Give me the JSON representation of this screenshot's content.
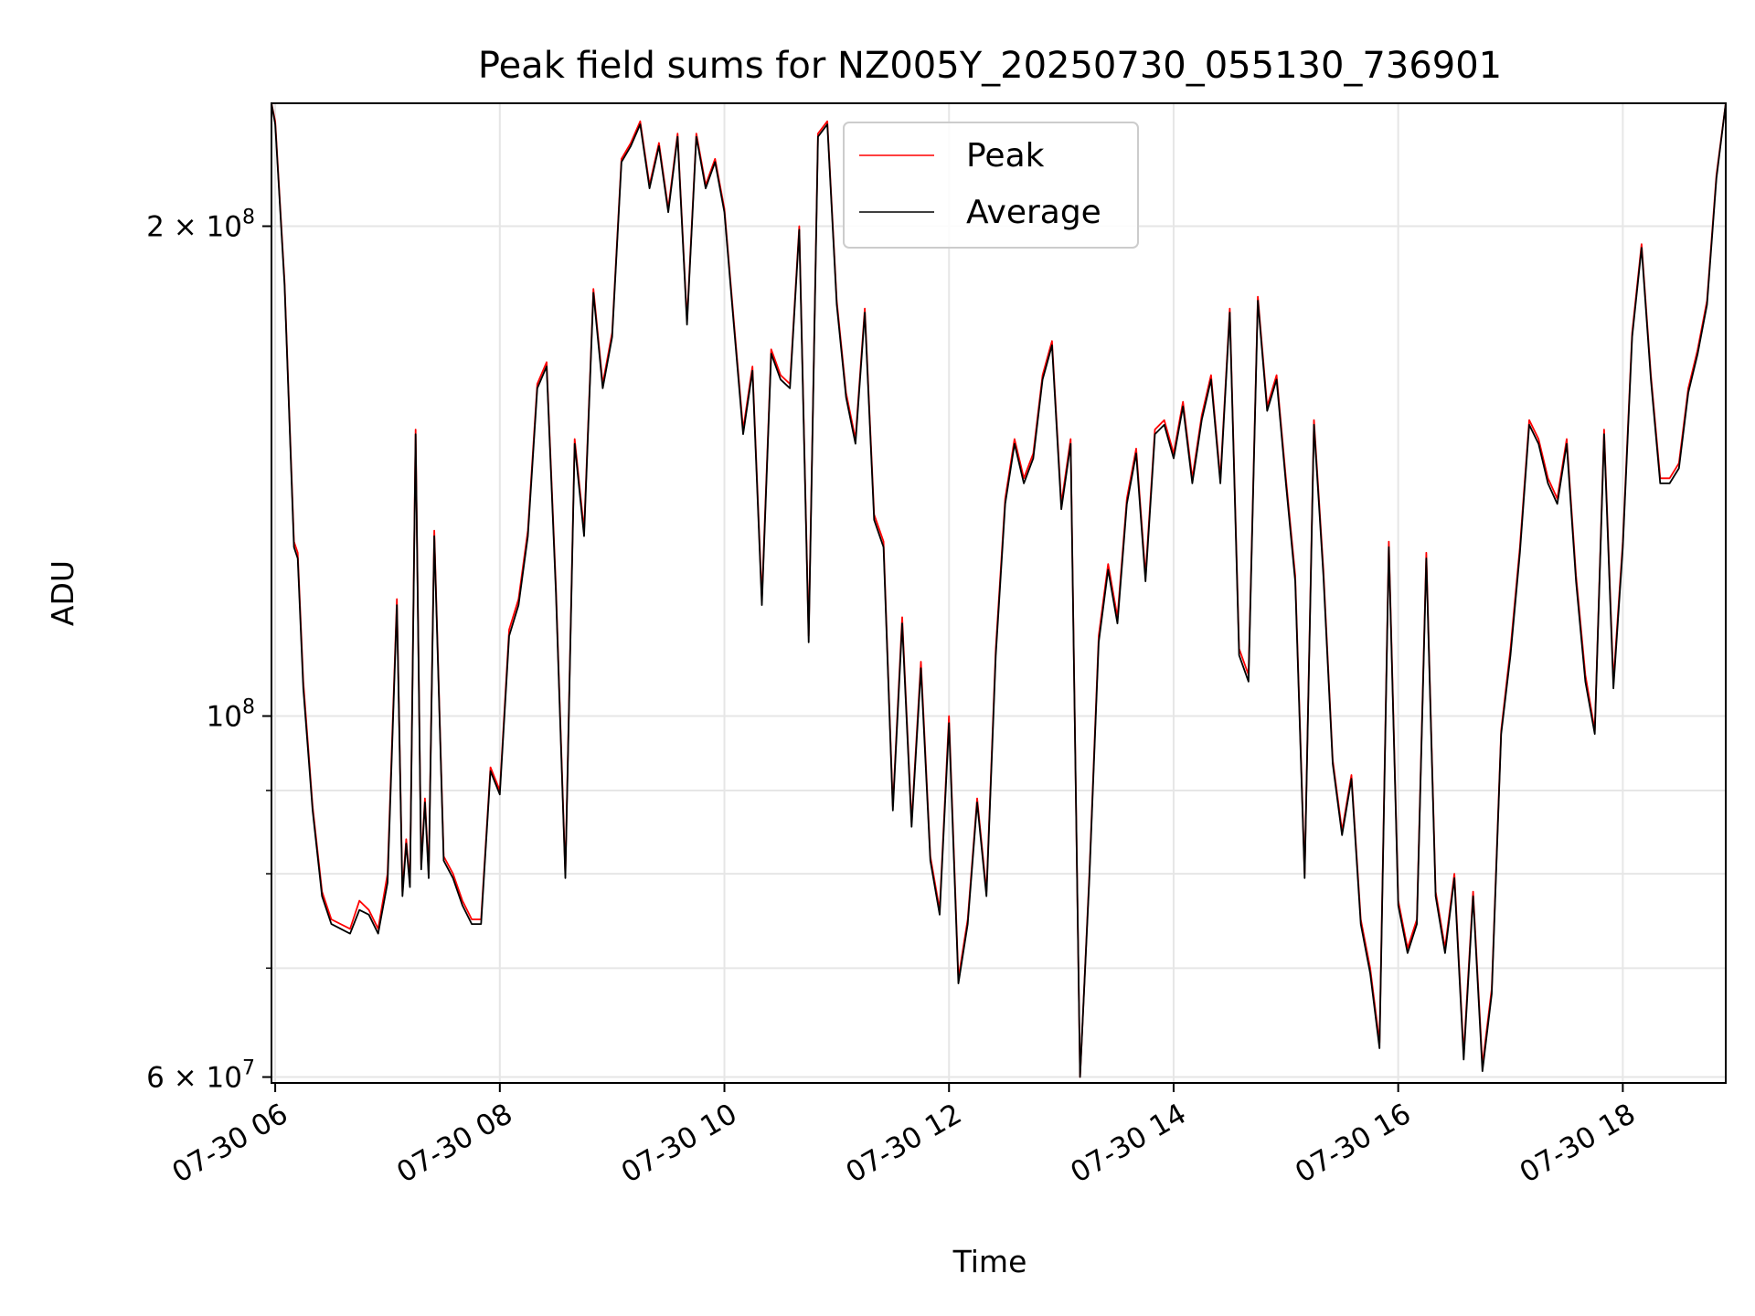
{
  "chart_data": {
    "type": "line",
    "title": "Peak field sums for NZ005Y_20250730_055130_736901",
    "xlabel": "Time",
    "ylabel": "ADU",
    "yscale": "log",
    "ylim": [
      59500000,
      238000000
    ],
    "xlim": [
      "2025-07-30 05:58",
      "2025-07-30 18:55"
    ],
    "grid": true,
    "legend_position": "top-center",
    "x_ticks": [
      {
        "x": "2025-07-30 06:00",
        "label": "07-30 06"
      },
      {
        "x": "2025-07-30 08:00",
        "label": "07-30 08"
      },
      {
        "x": "2025-07-30 10:00",
        "label": "07-30 10"
      },
      {
        "x": "2025-07-30 12:00",
        "label": "07-30 12"
      },
      {
        "x": "2025-07-30 14:00",
        "label": "07-30 14"
      },
      {
        "x": "2025-07-30 16:00",
        "label": "07-30 16"
      },
      {
        "x": "2025-07-30 18:00",
        "label": "07-30 18"
      }
    ],
    "y_ticks": [
      {
        "y": 60000000,
        "base": "6 × 10",
        "exp": "7"
      },
      {
        "y": 100000000,
        "base": "10",
        "exp": "8"
      },
      {
        "y": 200000000,
        "base": "2 × 10",
        "exp": "8"
      }
    ],
    "y_minor_ticks": [
      70000000,
      80000000,
      90000000
    ],
    "series": [
      {
        "name": "Peak",
        "color": "#ff0000",
        "x": [
          "2025-07-30 05:58",
          "2025-07-30 06:00",
          "2025-07-30 06:05",
          "2025-07-30 06:10",
          "2025-07-30 06:12",
          "2025-07-30 06:15",
          "2025-07-30 06:20",
          "2025-07-30 06:25",
          "2025-07-30 06:30",
          "2025-07-30 06:40",
          "2025-07-30 06:45",
          "2025-07-30 06:50",
          "2025-07-30 06:55",
          "2025-07-30 07:00",
          "2025-07-30 07:05",
          "2025-07-30 07:08",
          "2025-07-30 07:10",
          "2025-07-30 07:12",
          "2025-07-30 07:15",
          "2025-07-30 07:18",
          "2025-07-30 07:20",
          "2025-07-30 07:22",
          "2025-07-30 07:25",
          "2025-07-30 07:30",
          "2025-07-30 07:35",
          "2025-07-30 07:40",
          "2025-07-30 07:45",
          "2025-07-30 07:50",
          "2025-07-30 07:55",
          "2025-07-30 08:00",
          "2025-07-30 08:05",
          "2025-07-30 08:10",
          "2025-07-30 08:15",
          "2025-07-30 08:20",
          "2025-07-30 08:25",
          "2025-07-30 08:30",
          "2025-07-30 08:35",
          "2025-07-30 08:40",
          "2025-07-30 08:45",
          "2025-07-30 08:50",
          "2025-07-30 08:55",
          "2025-07-30 09:00",
          "2025-07-30 09:05",
          "2025-07-30 09:10",
          "2025-07-30 09:15",
          "2025-07-30 09:20",
          "2025-07-30 09:25",
          "2025-07-30 09:30",
          "2025-07-30 09:35",
          "2025-07-30 09:40",
          "2025-07-30 09:45",
          "2025-07-30 09:50",
          "2025-07-30 09:55",
          "2025-07-30 10:00",
          "2025-07-30 10:05",
          "2025-07-30 10:10",
          "2025-07-30 10:15",
          "2025-07-30 10:20",
          "2025-07-30 10:25",
          "2025-07-30 10:30",
          "2025-07-30 10:35",
          "2025-07-30 10:40",
          "2025-07-30 10:45",
          "2025-07-30 10:50",
          "2025-07-30 10:55",
          "2025-07-30 11:00",
          "2025-07-30 11:05",
          "2025-07-30 11:10",
          "2025-07-30 11:15",
          "2025-07-30 11:20",
          "2025-07-30 11:25",
          "2025-07-30 11:30",
          "2025-07-30 11:35",
          "2025-07-30 11:40",
          "2025-07-30 11:45",
          "2025-07-30 11:50",
          "2025-07-30 11:55",
          "2025-07-30 12:00",
          "2025-07-30 12:05",
          "2025-07-30 12:10",
          "2025-07-30 12:15",
          "2025-07-30 12:20",
          "2025-07-30 12:25",
          "2025-07-30 12:30",
          "2025-07-30 12:35",
          "2025-07-30 12:40",
          "2025-07-30 12:45",
          "2025-07-30 12:50",
          "2025-07-30 12:55",
          "2025-07-30 13:00",
          "2025-07-30 13:05",
          "2025-07-30 13:10",
          "2025-07-30 13:15",
          "2025-07-30 13:20",
          "2025-07-30 13:25",
          "2025-07-30 13:30",
          "2025-07-30 13:35",
          "2025-07-30 13:40",
          "2025-07-30 13:45",
          "2025-07-30 13:50",
          "2025-07-30 13:55",
          "2025-07-30 14:00",
          "2025-07-30 14:05",
          "2025-07-30 14:10",
          "2025-07-30 14:15",
          "2025-07-30 14:20",
          "2025-07-30 14:25",
          "2025-07-30 14:30",
          "2025-07-30 14:35",
          "2025-07-30 14:40",
          "2025-07-30 14:45",
          "2025-07-30 14:50",
          "2025-07-30 14:55",
          "2025-07-30 15:00",
          "2025-07-30 15:05",
          "2025-07-30 15:10",
          "2025-07-30 15:15",
          "2025-07-30 15:20",
          "2025-07-30 15:25",
          "2025-07-30 15:30",
          "2025-07-30 15:35",
          "2025-07-30 15:40",
          "2025-07-30 15:45",
          "2025-07-30 15:50",
          "2025-07-30 15:55",
          "2025-07-30 16:00",
          "2025-07-30 16:05",
          "2025-07-30 16:10",
          "2025-07-30 16:15",
          "2025-07-30 16:20",
          "2025-07-30 16:25",
          "2025-07-30 16:30",
          "2025-07-30 16:35",
          "2025-07-30 16:40",
          "2025-07-30 16:45",
          "2025-07-30 16:50",
          "2025-07-30 16:55",
          "2025-07-30 17:00",
          "2025-07-30 17:05",
          "2025-07-30 17:10",
          "2025-07-30 17:15",
          "2025-07-30 17:20",
          "2025-07-30 17:25",
          "2025-07-30 17:30",
          "2025-07-30 17:35",
          "2025-07-30 17:40",
          "2025-07-30 17:45",
          "2025-07-30 17:50",
          "2025-07-30 17:55",
          "2025-07-30 18:00",
          "2025-07-30 18:05",
          "2025-07-30 18:10",
          "2025-07-30 18:15",
          "2025-07-30 18:20",
          "2025-07-30 18:25",
          "2025-07-30 18:30",
          "2025-07-30 18:35",
          "2025-07-30 18:40",
          "2025-07-30 18:45",
          "2025-07-30 18:50",
          "2025-07-30 18:55"
        ],
        "y": [
          238000000,
          232000000,
          185000000,
          128000000,
          126000000,
          105000000,
          88000000,
          78000000,
          75000000,
          74000000,
          77000000,
          76000000,
          74000000,
          80000000,
          118000000,
          78000000,
          84000000,
          79000000,
          150000000,
          81000000,
          89000000,
          80000000,
          130000000,
          82000000,
          80000000,
          77000000,
          75000000,
          75000000,
          93000000,
          90000000,
          113000000,
          118000000,
          130000000,
          160000000,
          165000000,
          120000000,
          80000000,
          148000000,
          130000000,
          183000000,
          160000000,
          172000000,
          220000000,
          225000000,
          232000000,
          212000000,
          225000000,
          205000000,
          228000000,
          175000000,
          228000000,
          212000000,
          220000000,
          205000000,
          175000000,
          150000000,
          164000000,
          118000000,
          168000000,
          162000000,
          160000000,
          200000000,
          112000000,
          228000000,
          232000000,
          180000000,
          158000000,
          148000000,
          178000000,
          133000000,
          128000000,
          88000000,
          115000000,
          86000000,
          108000000,
          82000000,
          76000000,
          100000000,
          69000000,
          75000000,
          89000000,
          78000000,
          110000000,
          136000000,
          148000000,
          140000000,
          145000000,
          162000000,
          170000000,
          135000000,
          148000000,
          60000000,
          80000000,
          112000000,
          124000000,
          115000000,
          136000000,
          146000000,
          122000000,
          150000000,
          152000000,
          145000000,
          156000000,
          140000000,
          153000000,
          162000000,
          140000000,
          178000000,
          110000000,
          106000000,
          181000000,
          155000000,
          162000000,
          140000000,
          122000000,
          80000000,
          152000000,
          123000000,
          94000000,
          85000000,
          92000000,
          75000000,
          70000000,
          63000000,
          128000000,
          77000000,
          72000000,
          75000000,
          126000000,
          78000000,
          72000000,
          80000000,
          62000000,
          78000000,
          61000000,
          68000000,
          98000000,
          110000000,
          127000000,
          152000000,
          148000000,
          140000000,
          136000000,
          148000000,
          122000000,
          106000000,
          98000000,
          150000000,
          105000000,
          128000000,
          172000000,
          195000000,
          162000000,
          140000000,
          140000000,
          143000000,
          159000000,
          168000000,
          180000000,
          215000000,
          238000000
        ]
      },
      {
        "name": "Average",
        "color": "#000000",
        "x": [
          "2025-07-30 05:58",
          "2025-07-30 06:00",
          "2025-07-30 06:05",
          "2025-07-30 06:10",
          "2025-07-30 06:12",
          "2025-07-30 06:15",
          "2025-07-30 06:20",
          "2025-07-30 06:25",
          "2025-07-30 06:30",
          "2025-07-30 06:40",
          "2025-07-30 06:45",
          "2025-07-30 06:50",
          "2025-07-30 06:55",
          "2025-07-30 07:00",
          "2025-07-30 07:05",
          "2025-07-30 07:08",
          "2025-07-30 07:10",
          "2025-07-30 07:12",
          "2025-07-30 07:15",
          "2025-07-30 07:18",
          "2025-07-30 07:20",
          "2025-07-30 07:22",
          "2025-07-30 07:25",
          "2025-07-30 07:30",
          "2025-07-30 07:35",
          "2025-07-30 07:40",
          "2025-07-30 07:45",
          "2025-07-30 07:50",
          "2025-07-30 07:55",
          "2025-07-30 08:00",
          "2025-07-30 08:05",
          "2025-07-30 08:10",
          "2025-07-30 08:15",
          "2025-07-30 08:20",
          "2025-07-30 08:25",
          "2025-07-30 08:30",
          "2025-07-30 08:35",
          "2025-07-30 08:40",
          "2025-07-30 08:45",
          "2025-07-30 08:50",
          "2025-07-30 08:55",
          "2025-07-30 09:00",
          "2025-07-30 09:05",
          "2025-07-30 09:10",
          "2025-07-30 09:15",
          "2025-07-30 09:20",
          "2025-07-30 09:25",
          "2025-07-30 09:30",
          "2025-07-30 09:35",
          "2025-07-30 09:40",
          "2025-07-30 09:45",
          "2025-07-30 09:50",
          "2025-07-30 09:55",
          "2025-07-30 10:00",
          "2025-07-30 10:05",
          "2025-07-30 10:10",
          "2025-07-30 10:15",
          "2025-07-30 10:20",
          "2025-07-30 10:25",
          "2025-07-30 10:30",
          "2025-07-30 10:35",
          "2025-07-30 10:40",
          "2025-07-30 10:45",
          "2025-07-30 10:50",
          "2025-07-30 10:55",
          "2025-07-30 11:00",
          "2025-07-30 11:05",
          "2025-07-30 11:10",
          "2025-07-30 11:15",
          "2025-07-30 11:20",
          "2025-07-30 11:25",
          "2025-07-30 11:30",
          "2025-07-30 11:35",
          "2025-07-30 11:40",
          "2025-07-30 11:45",
          "2025-07-30 11:50",
          "2025-07-30 11:55",
          "2025-07-30 12:00",
          "2025-07-30 12:05",
          "2025-07-30 12:10",
          "2025-07-30 12:15",
          "2025-07-30 12:20",
          "2025-07-30 12:25",
          "2025-07-30 12:30",
          "2025-07-30 12:35",
          "2025-07-30 12:40",
          "2025-07-30 12:45",
          "2025-07-30 12:50",
          "2025-07-30 12:55",
          "2025-07-30 13:00",
          "2025-07-30 13:05",
          "2025-07-30 13:10",
          "2025-07-30 13:15",
          "2025-07-30 13:20",
          "2025-07-30 13:25",
          "2025-07-30 13:30",
          "2025-07-30 13:35",
          "2025-07-30 13:40",
          "2025-07-30 13:45",
          "2025-07-30 13:50",
          "2025-07-30 13:55",
          "2025-07-30 14:00",
          "2025-07-30 14:05",
          "2025-07-30 14:10",
          "2025-07-30 14:15",
          "2025-07-30 14:20",
          "2025-07-30 14:25",
          "2025-07-30 14:30",
          "2025-07-30 14:35",
          "2025-07-30 14:40",
          "2025-07-30 14:45",
          "2025-07-30 14:50",
          "2025-07-30 14:55",
          "2025-07-30 15:00",
          "2025-07-30 15:05",
          "2025-07-30 15:10",
          "2025-07-30 15:15",
          "2025-07-30 15:20",
          "2025-07-30 15:25",
          "2025-07-30 15:30",
          "2025-07-30 15:35",
          "2025-07-30 15:40",
          "2025-07-30 15:45",
          "2025-07-30 15:50",
          "2025-07-30 15:55",
          "2025-07-30 16:00",
          "2025-07-30 16:05",
          "2025-07-30 16:10",
          "2025-07-30 16:15",
          "2025-07-30 16:20",
          "2025-07-30 16:25",
          "2025-07-30 16:30",
          "2025-07-30 16:35",
          "2025-07-30 16:40",
          "2025-07-30 16:45",
          "2025-07-30 16:50",
          "2025-07-30 16:55",
          "2025-07-30 17:00",
          "2025-07-30 17:05",
          "2025-07-30 17:10",
          "2025-07-30 17:15",
          "2025-07-30 17:20",
          "2025-07-30 17:25",
          "2025-07-30 17:30",
          "2025-07-30 17:35",
          "2025-07-30 17:40",
          "2025-07-30 17:45",
          "2025-07-30 17:50",
          "2025-07-30 17:55",
          "2025-07-30 18:00",
          "2025-07-30 18:05",
          "2025-07-30 18:10",
          "2025-07-30 18:15",
          "2025-07-30 18:20",
          "2025-07-30 18:25",
          "2025-07-30 18:30",
          "2025-07-30 18:35",
          "2025-07-30 18:40",
          "2025-07-30 18:45",
          "2025-07-30 18:50",
          "2025-07-30 18:55"
        ],
        "y": [
          238000000,
          231000000,
          184000000,
          127000000,
          125000000,
          104000000,
          87500000,
          77500000,
          74500000,
          73500000,
          76000000,
          75500000,
          73500000,
          79000000,
          117000000,
          77500000,
          83500000,
          78500000,
          149000000,
          80500000,
          88500000,
          79500000,
          129000000,
          81500000,
          79500000,
          76500000,
          74500000,
          74500000,
          92500000,
          89500000,
          112000000,
          117000000,
          129000000,
          159000000,
          164000000,
          119000000,
          79500000,
          147000000,
          129000000,
          182000000,
          159000000,
          171000000,
          219000000,
          224000000,
          231000000,
          211000000,
          224000000,
          204000000,
          227000000,
          174000000,
          227000000,
          211000000,
          219000000,
          204000000,
          174000000,
          149000000,
          163000000,
          117000000,
          167000000,
          161000000,
          159000000,
          199000000,
          111000000,
          227000000,
          231000000,
          179000000,
          157000000,
          147000000,
          177000000,
          132000000,
          127000000,
          87500000,
          114000000,
          85500000,
          107000000,
          81500000,
          75500000,
          99000000,
          68500000,
          74500000,
          88500000,
          77500000,
          109000000,
          135000000,
          147000000,
          139000000,
          144000000,
          161000000,
          169000000,
          134000000,
          147000000,
          60000000,
          79500000,
          111000000,
          123000000,
          114000000,
          135000000,
          145000000,
          121000000,
          149000000,
          151000000,
          144000000,
          155000000,
          139000000,
          152000000,
          161000000,
          139000000,
          177000000,
          109000000,
          105000000,
          180000000,
          154000000,
          161000000,
          139000000,
          121000000,
          79500000,
          151000000,
          122000000,
          93500000,
          84500000,
          91500000,
          74500000,
          69500000,
          62500000,
          127000000,
          76500000,
          71500000,
          74500000,
          125000000,
          77500000,
          71500000,
          79500000,
          61500000,
          77500000,
          60500000,
          67500000,
          97500000,
          109000000,
          126000000,
          151000000,
          147000000,
          139000000,
          135000000,
          147000000,
          121000000,
          105000000,
          97500000,
          149000000,
          104000000,
          127000000,
          171000000,
          194000000,
          161000000,
          139000000,
          139000000,
          142000000,
          158000000,
          167000000,
          179000000,
          214000000,
          238000000
        ]
      }
    ]
  }
}
